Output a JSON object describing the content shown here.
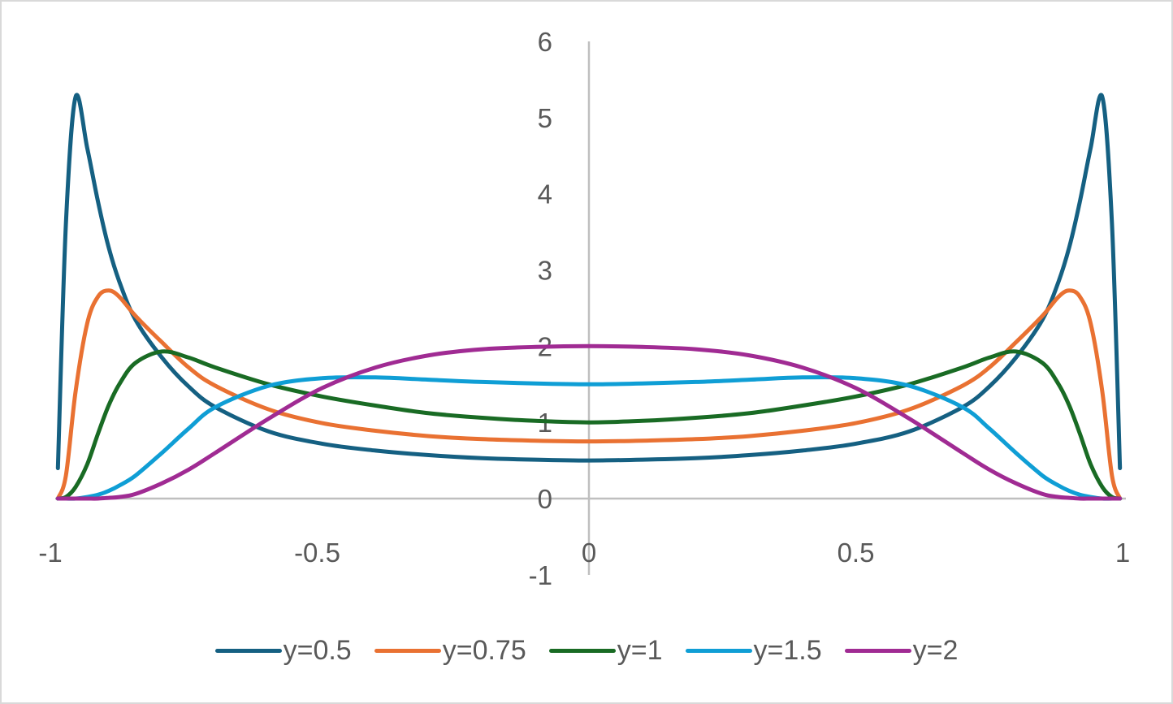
{
  "chart_data": {
    "type": "line",
    "title": "",
    "xlabel": "",
    "ylabel": "",
    "xlim": [
      -1,
      1
    ],
    "ylim": [
      -1,
      6
    ],
    "x_ticks": [
      "-1",
      "-0.5",
      "0",
      "0.5",
      "1"
    ],
    "y_ticks": [
      "-1",
      "0",
      "1",
      "2",
      "3",
      "4",
      "5",
      "6"
    ],
    "grid": false,
    "legend_position": "bottom",
    "x_half": [
      -0.995,
      -0.98,
      -0.962,
      -0.94,
      -0.92,
      -0.9,
      -0.88,
      -0.85,
      -0.8,
      -0.75,
      -0.7,
      -0.6,
      -0.5,
      -0.4,
      -0.3,
      -0.2,
      -0.1,
      0
    ],
    "symmetric_about_x0": true,
    "series": [
      {
        "name": "y=0.5",
        "color": "#156082",
        "values": [
          0.4,
          3.6,
          5.27,
          4.6,
          3.9,
          3.3,
          2.85,
          2.35,
          1.85,
          1.47,
          1.2,
          0.88,
          0.72,
          0.63,
          0.57,
          0.53,
          0.51,
          0.5
        ]
      },
      {
        "name": "y=0.75",
        "color": "#E97132",
        "values": [
          0,
          0.3,
          1.4,
          2.3,
          2.65,
          2.73,
          2.65,
          2.4,
          2.05,
          1.72,
          1.48,
          1.17,
          0.99,
          0.89,
          0.82,
          0.78,
          0.76,
          0.75
        ]
      },
      {
        "name": "y=1",
        "color": "#196B24",
        "values": [
          0,
          0.02,
          0.15,
          0.45,
          0.85,
          1.22,
          1.5,
          1.78,
          1.93,
          1.85,
          1.72,
          1.5,
          1.34,
          1.22,
          1.12,
          1.06,
          1.02,
          1.0
        ]
      },
      {
        "name": "y=1.5",
        "color": "#0F9ED5",
        "values": [
          0,
          0,
          0,
          0.02,
          0.05,
          0.1,
          0.17,
          0.3,
          0.6,
          0.92,
          1.2,
          1.48,
          1.58,
          1.59,
          1.56,
          1.53,
          1.51,
          1.5
        ]
      },
      {
        "name": "y=2",
        "color": "#A02B93",
        "values": [
          0,
          0,
          0,
          0,
          0,
          0.01,
          0.02,
          0.06,
          0.2,
          0.38,
          0.6,
          1.05,
          1.45,
          1.72,
          1.88,
          1.96,
          1.99,
          2.0
        ]
      }
    ]
  },
  "legend": [
    {
      "label": "y=0.5",
      "color": "#156082"
    },
    {
      "label": "y=0.75",
      "color": "#E97132"
    },
    {
      "label": "y=1",
      "color": "#196B24"
    },
    {
      "label": "y=1.5",
      "color": "#0F9ED5"
    },
    {
      "label": "y=2",
      "color": "#A02B93"
    }
  ]
}
